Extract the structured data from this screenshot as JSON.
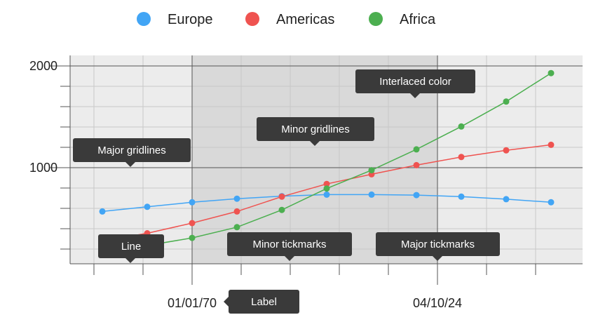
{
  "chart_data": {
    "type": "line",
    "legend": {
      "position": "top-center"
    },
    "series": [
      {
        "name": "Europe",
        "color": "#42a5f5",
        "values": [
          570,
          615,
          660,
          695,
          720,
          735,
          735,
          730,
          715,
          690,
          660
        ]
      },
      {
        "name": "Americas",
        "color": "#ef5350",
        "values": [
          280,
          355,
          455,
          570,
          715,
          840,
          935,
          1025,
          1105,
          1170,
          1225
        ]
      },
      {
        "name": "Africa",
        "color": "#4caf50",
        "values": [
          180,
          235,
          310,
          415,
          585,
          795,
          975,
          1180,
          1405,
          1650,
          1930
        ]
      }
    ],
    "x_axis": {
      "tick_labels": [
        "01/01/70",
        "04/10/24"
      ],
      "band_color": "#d9d9d9",
      "minor_tickmarks": true
    },
    "y_axis": {
      "tick_labels": [
        "1000",
        "2000"
      ],
      "ylim": [
        0,
        2000
      ],
      "major_gridlines": true,
      "minor_gridlines": true,
      "interlaced_color": "#ebebeb"
    },
    "annotations": [
      {
        "id": "major-gridlines",
        "text": "Major gridlines"
      },
      {
        "id": "minor-gridlines",
        "text": "Minor gridlines"
      },
      {
        "id": "interlaced-color",
        "text": "Interlaced color"
      },
      {
        "id": "line",
        "text": "Line"
      },
      {
        "id": "minor-tickmarks",
        "text": "Minor tickmarks"
      },
      {
        "id": "major-tickmarks",
        "text": "Major tickmarks"
      },
      {
        "id": "label",
        "text": "Label"
      }
    ],
    "callout_color": "#3a3a3a"
  }
}
